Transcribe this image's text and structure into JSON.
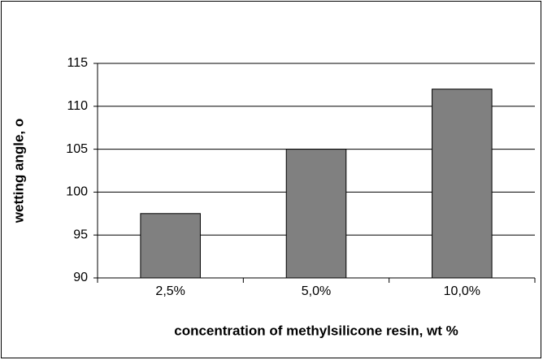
{
  "chart_data": {
    "type": "bar",
    "xlabel": "concentration of  methylsilicone resin, wt %",
    "ylabel": "wetting angle, o",
    "categories": [
      "2,5%",
      "5,0%",
      "10,0%"
    ],
    "values": [
      97.5,
      105,
      112
    ],
    "color": "#808080",
    "ylim": [
      90,
      115
    ],
    "yticks": [
      90,
      95,
      100,
      105,
      110,
      115
    ],
    "grid": true
  }
}
